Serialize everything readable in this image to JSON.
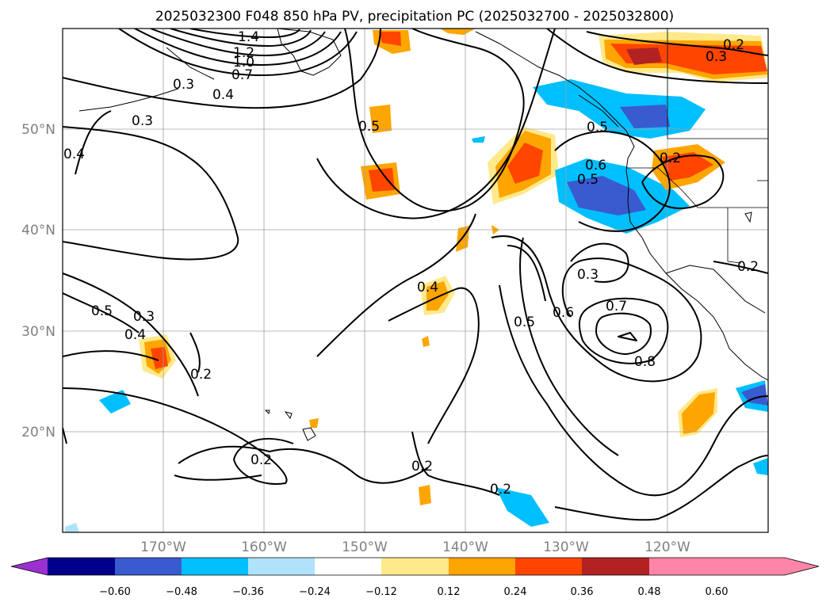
{
  "title": "2025032300 F048 850 hPa PV, precipitation PC (2025032700 - 2025032800)",
  "map": {
    "lon_range": [
      -180,
      -110
    ],
    "lat_range": [
      10,
      60
    ],
    "lat_labels": [
      "20°N",
      "30°N",
      "40°N",
      "50°N"
    ],
    "lon_labels": [
      "170°W",
      "160°W",
      "150°W",
      "140°W",
      "130°W",
      "120°W"
    ],
    "contour_labels": [
      "1.4",
      "1.2",
      "1.0",
      "0.7",
      "0.3",
      "0.4",
      "0.3",
      "0.4",
      "0.5",
      "0.5",
      "0.6",
      "0.5",
      "0.2",
      "0.4",
      "0.3",
      "0.7",
      "0.6",
      "0.5",
      "0.8",
      "0.2",
      "0.5",
      "0.3",
      "0.4",
      "0.2",
      "0.2",
      "0.2",
      "0.2",
      "0.3",
      "0.2"
    ]
  },
  "colorbar": {
    "ticks": [
      "−0.60",
      "−0.48",
      "−0.36",
      "−0.24",
      "−0.12",
      "0.12",
      "0.24",
      "0.36",
      "0.48",
      "0.60"
    ],
    "colors": [
      "#9b30d0",
      "#00008b",
      "#3a5bd0",
      "#00bfff",
      "#aee3fb",
      "#ffffff",
      "#ffe98a",
      "#ffa500",
      "#ff4500",
      "#b22222",
      "#ff85a8"
    ]
  }
}
